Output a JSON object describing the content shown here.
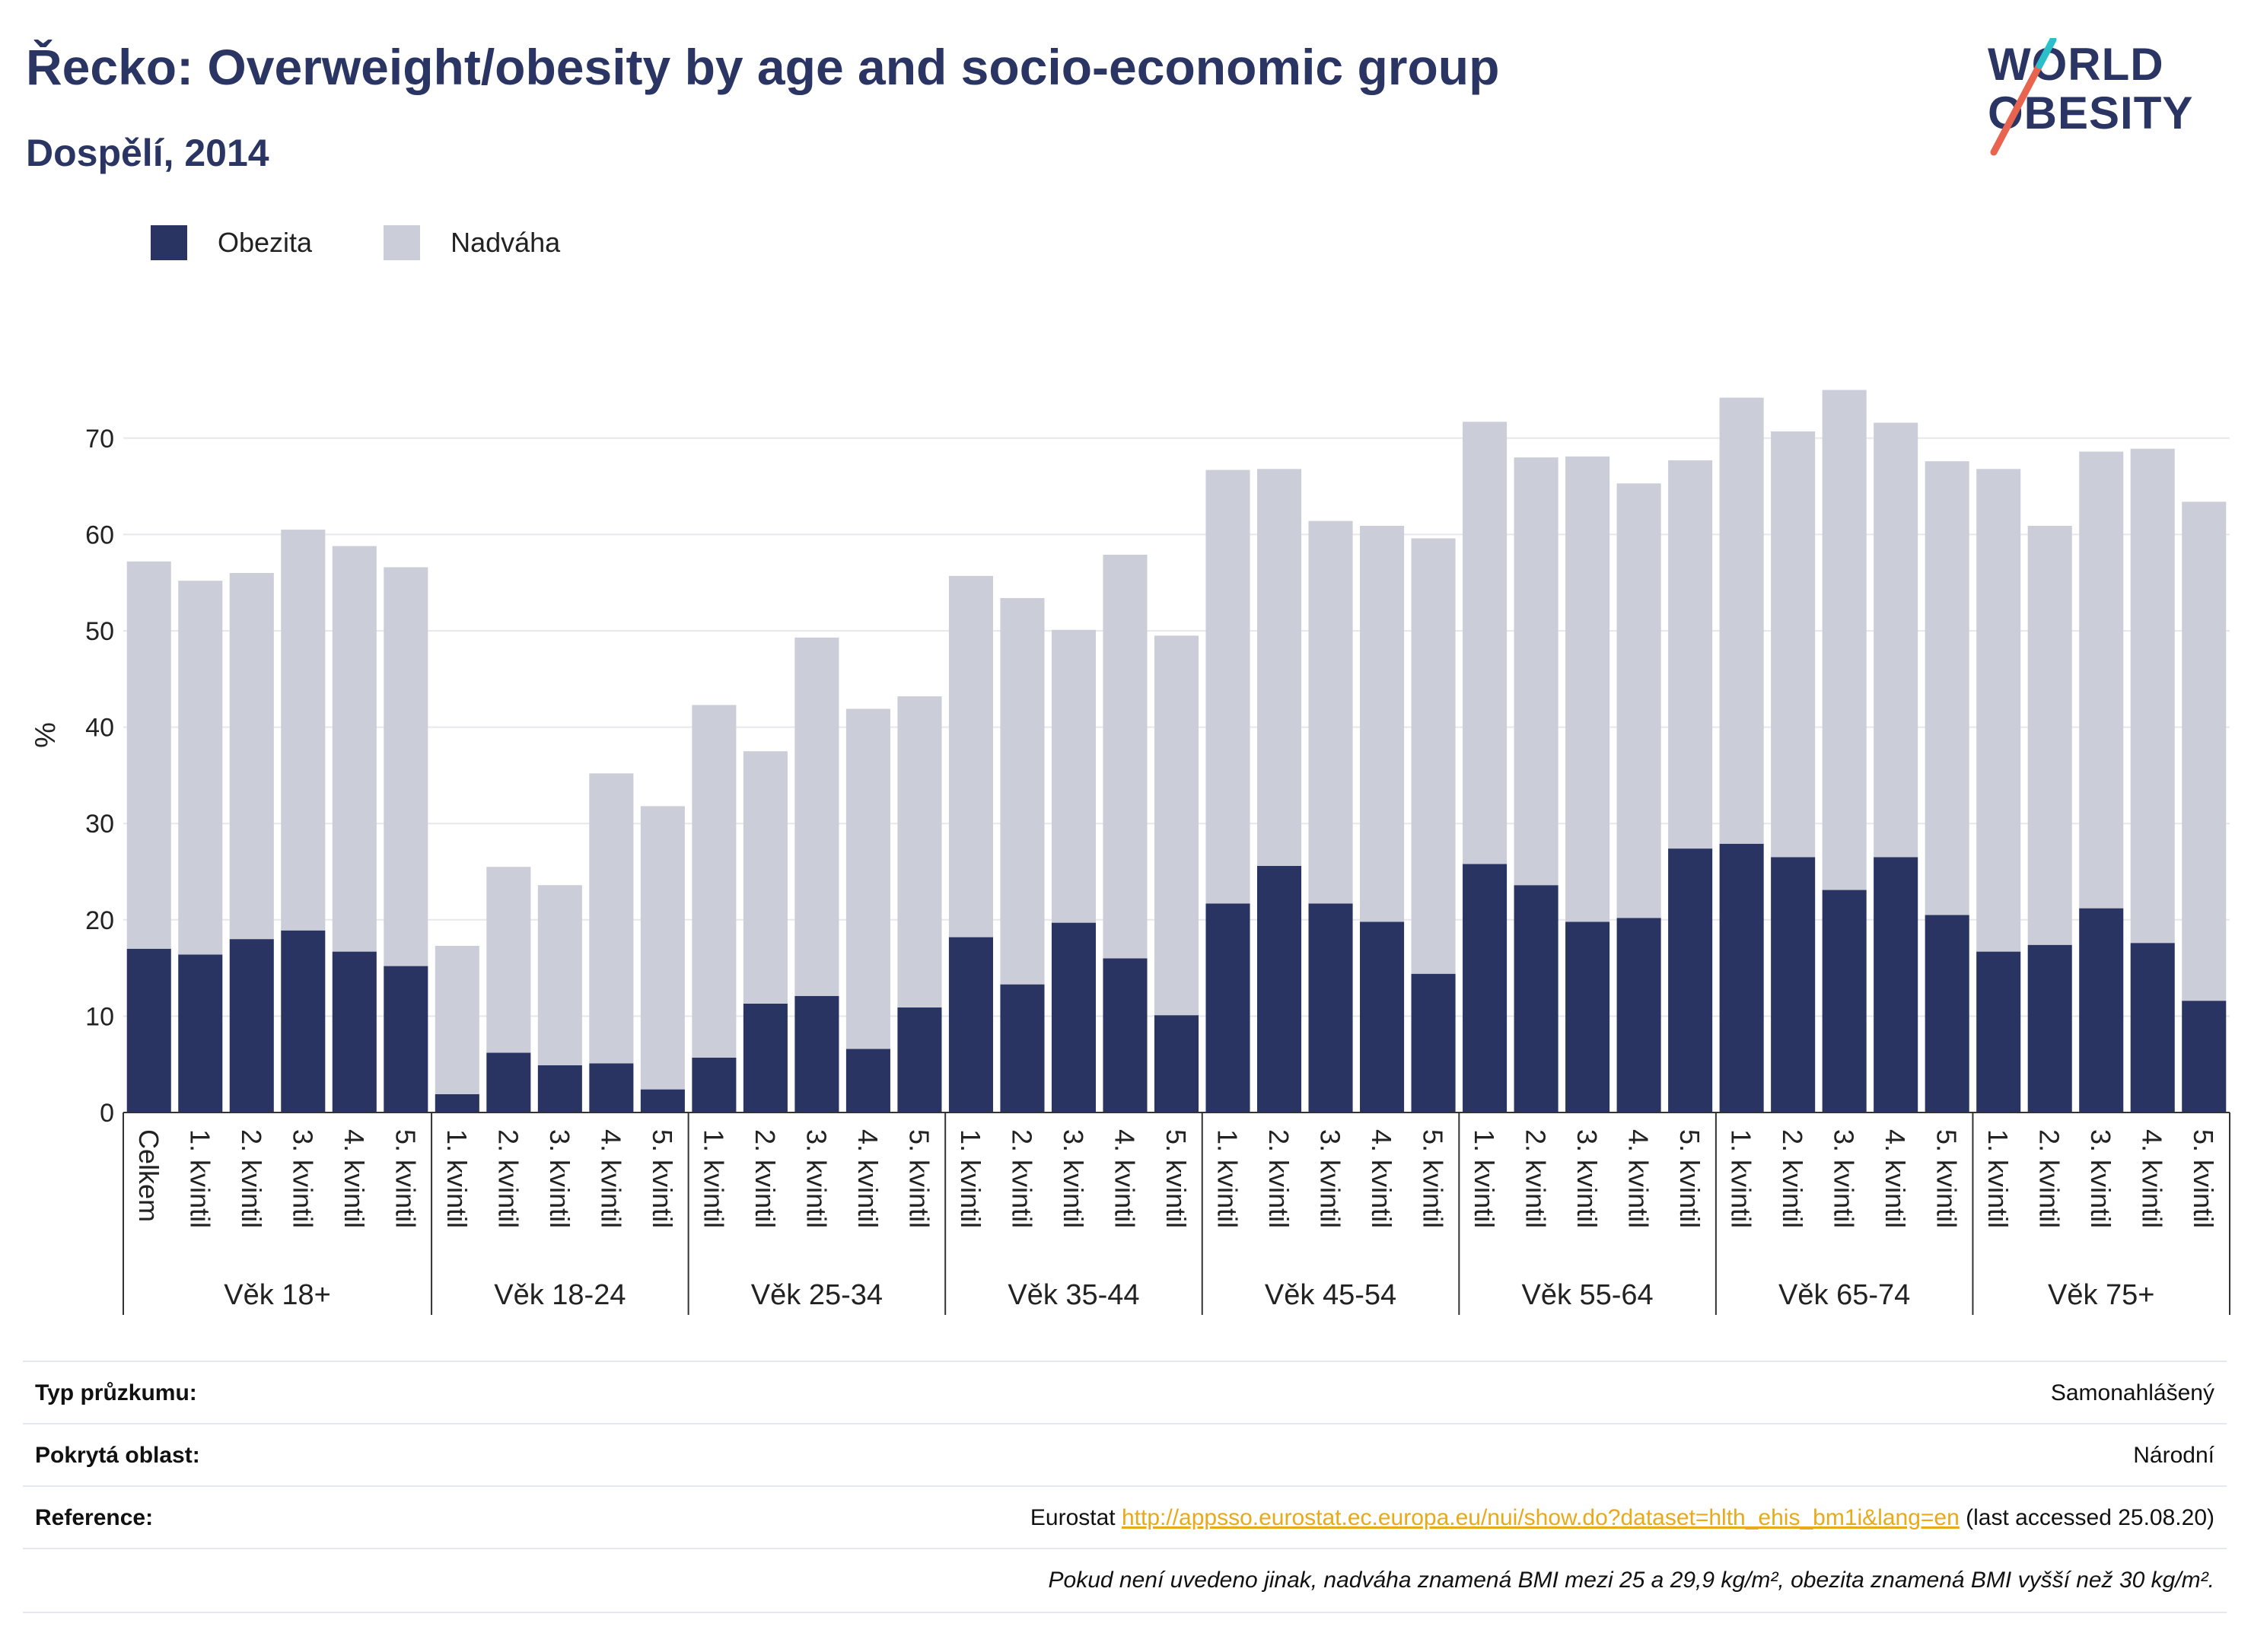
{
  "header": {
    "title": "Řecko: Overweight/obesity by age and socio-economic group",
    "subtitle": "Dospělí, 2014"
  },
  "logo": {
    "line1": "WORLD",
    "line2": "OBESITY",
    "brand_colors": [
      "#2a3563",
      "#e9644f",
      "#2bbfc9"
    ]
  },
  "legend": [
    {
      "label": "Obezita",
      "color": "#293462"
    },
    {
      "label": "Nadváha",
      "color": "#cbcdd8"
    }
  ],
  "chart_data": {
    "type": "bar",
    "stacked": true,
    "ylabel": "%",
    "ylim": [
      0,
      80
    ],
    "yticks": [
      0,
      10,
      20,
      30,
      40,
      50,
      60,
      70
    ],
    "grid": true,
    "legend_position": "top-left",
    "groups": [
      {
        "label": "Věk 18+",
        "categories": [
          "Celkem",
          "1. kvintil",
          "2. kvintil",
          "3. kvintil",
          "4. kvintil",
          "5. kvintil"
        ]
      },
      {
        "label": "Věk 18-24",
        "categories": [
          "1. kvintil",
          "2. kvintil",
          "3. kvintil",
          "4. kvintil",
          "5. kvintil"
        ]
      },
      {
        "label": "Věk 25-34",
        "categories": [
          "1. kvintil",
          "2. kvintil",
          "3. kvintil",
          "4. kvintil",
          "5. kvintil"
        ]
      },
      {
        "label": "Věk 35-44",
        "categories": [
          "1. kvintil",
          "2. kvintil",
          "3. kvintil",
          "4. kvintil",
          "5. kvintil"
        ]
      },
      {
        "label": "Věk 45-54",
        "categories": [
          "1. kvintil",
          "2. kvintil",
          "3. kvintil",
          "4. kvintil",
          "5. kvintil"
        ]
      },
      {
        "label": "Věk 55-64",
        "categories": [
          "1. kvintil",
          "2. kvintil",
          "3. kvintil",
          "4. kvintil",
          "5. kvintil"
        ]
      },
      {
        "label": "Věk 65-74",
        "categories": [
          "1. kvintil",
          "2. kvintil",
          "3. kvintil",
          "4. kvintil",
          "5. kvintil"
        ]
      },
      {
        "label": "Věk 75+",
        "categories": [
          "1. kvintil",
          "2. kvintil",
          "3. kvintil",
          "4. kvintil",
          "5. kvintil"
        ]
      }
    ],
    "series": [
      {
        "name": "Obezita",
        "color": "#293462",
        "values": [
          17.0,
          16.4,
          18.0,
          18.9,
          16.7,
          15.2,
          1.9,
          6.2,
          4.9,
          5.1,
          2.4,
          5.7,
          11.3,
          12.1,
          6.6,
          10.9,
          18.2,
          13.3,
          19.7,
          16.0,
          10.1,
          21.7,
          25.6,
          21.7,
          19.8,
          14.4,
          25.8,
          23.6,
          19.8,
          20.2,
          27.4,
          27.9,
          26.5,
          23.1,
          26.5,
          20.5,
          16.7,
          17.4,
          21.2,
          17.6,
          11.6
        ]
      },
      {
        "name": "Nadváha",
        "color": "#cbcdd8",
        "values": [
          40.2,
          38.8,
          38.0,
          41.6,
          42.1,
          41.4,
          15.4,
          19.3,
          18.7,
          30.1,
          29.4,
          36.6,
          26.2,
          37.2,
          35.3,
          32.3,
          37.5,
          40.1,
          30.4,
          41.9,
          39.4,
          45.0,
          41.2,
          39.7,
          41.1,
          45.2,
          45.9,
          44.4,
          48.3,
          45.1,
          40.3,
          46.3,
          44.2,
          51.9,
          45.1,
          47.1,
          50.1,
          43.5,
          47.4,
          51.3,
          51.8
        ]
      }
    ]
  },
  "info": {
    "survey_type_label": "Typ průzkumu:",
    "survey_type_value": "Samonahlášený",
    "coverage_label": "Pokrytá oblast:",
    "coverage_value": "Národní",
    "reference_label": "Reference:",
    "reference_prefix": "Eurostat",
    "reference_link": "http://appsso.eurostat.ec.europa.eu/nui/show.do?dataset=hlth_ehis_bm1i&lang=en",
    "reference_suffix": "(last accessed 25.08.20)",
    "note": "Pokud není uvedeno jinak, nadváha znamená BMI mezi 25 a 29,9 kg/m², obezita znamená BMI vyšší než 30 kg/m²."
  }
}
